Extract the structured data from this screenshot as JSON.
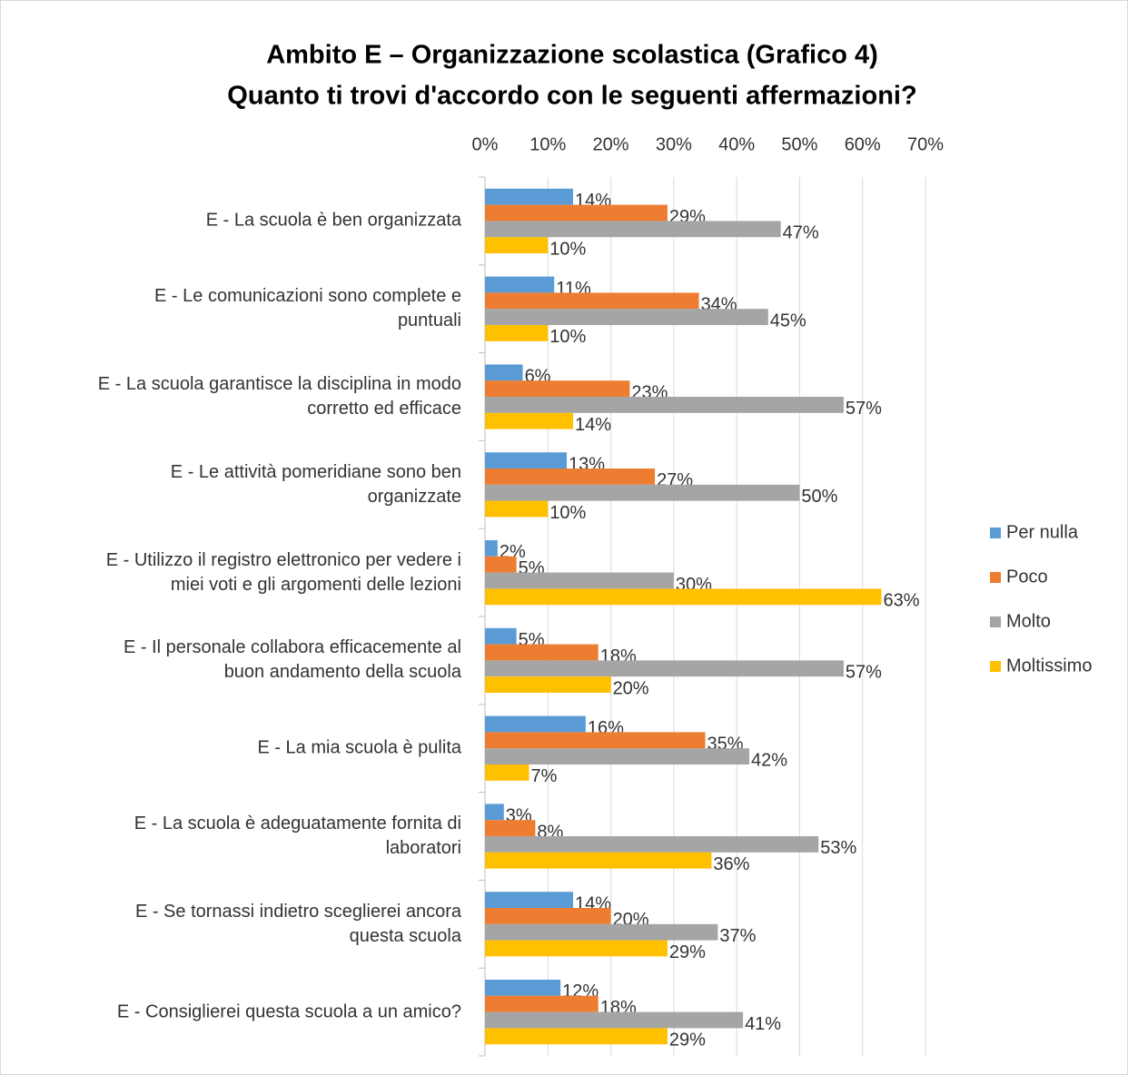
{
  "chart_data": {
    "type": "barh",
    "title": "Ambito E – Organizzazione scolastica (Grafico 4)",
    "subtitle": "Quanto ti trovi d'accordo con le seguenti affermazioni?",
    "categories": [
      "E - La scuola è ben organizzata",
      "E - Le comunicazioni sono complete e\npuntuali",
      "E - La scuola garantisce la disciplina in modo\ncorretto ed efficace",
      "E - Le attività  pomeridiane sono ben\norganizzate",
      "E - Utilizzo il registro elettronico per vedere i\nmiei voti e gli argomenti delle lezioni",
      "E - Il personale collabora efficacemente al\nbuon andamento della scuola",
      "E - La mia scuola è pulita",
      "E - La scuola è adeguatamente fornita di\nlaboratori",
      "E - Se tornassi indietro sceglierei ancora\nquesta scuola",
      "E - Consiglierei questa scuola a un amico?"
    ],
    "series": [
      {
        "name": "Per nulla",
        "color": "#5b9bd5",
        "values": [
          14,
          11,
          6,
          13,
          2,
          5,
          16,
          3,
          14,
          12
        ],
        "value_labels": [
          "14%",
          "11%",
          "6%",
          "13%",
          "2%",
          "5%",
          "16%",
          "3%",
          "14%",
          "12%"
        ]
      },
      {
        "name": "Poco",
        "color": "#ed7d31",
        "values": [
          29,
          34,
          23,
          27,
          5,
          18,
          35,
          8,
          20,
          18
        ],
        "value_labels": [
          "29%",
          "34%",
          "23%",
          "27%",
          "5%",
          "18%",
          "35%",
          "8%",
          "20%",
          "18%"
        ]
      },
      {
        "name": "Molto",
        "color": "#a5a5a5",
        "values": [
          47,
          45,
          57,
          50,
          30,
          57,
          42,
          53,
          37,
          41
        ],
        "value_labels": [
          "47%",
          "45%",
          "57%",
          "50%",
          "30%",
          "57%",
          "42%",
          "53%",
          "37%",
          "41%"
        ]
      },
      {
        "name": "Moltissimo",
        "color": "#ffc000",
        "values": [
          10,
          10,
          14,
          10,
          63,
          20,
          7,
          36,
          29,
          29
        ],
        "value_labels": [
          "10%",
          "10%",
          "14%",
          "10%",
          "63%",
          "20%",
          "7%",
          "36%",
          "29%",
          "29%"
        ]
      }
    ],
    "xlim": [
      0,
      70
    ],
    "xticks": [
      {
        "value": 0,
        "label": "0%"
      },
      {
        "value": 10,
        "label": "10%"
      },
      {
        "value": 20,
        "label": "20%"
      },
      {
        "value": 30,
        "label": "30%"
      },
      {
        "value": 40,
        "label": "40%"
      },
      {
        "value": 50,
        "label": "50%"
      },
      {
        "value": 60,
        "label": "60%"
      },
      {
        "value": 70,
        "label": "70%"
      }
    ],
    "grid": true,
    "legend": "right"
  }
}
